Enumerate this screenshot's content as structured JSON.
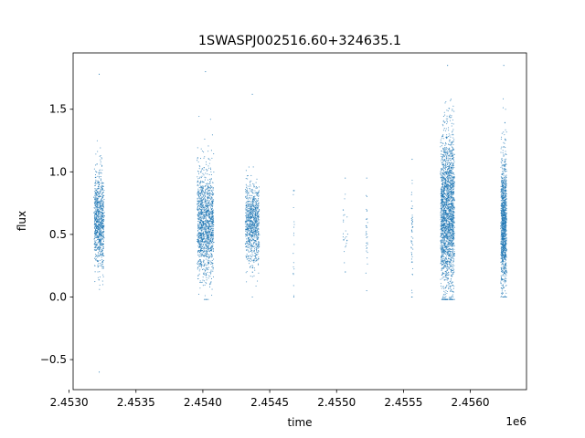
{
  "chart_data": {
    "type": "scatter",
    "title": "1SWASPJ002516.60+324635.1",
    "xlabel": "time",
    "ylabel": "flux",
    "x_offset_label": "1e6",
    "xlim": [
      2.45303,
      2.45642
    ],
    "ylim": [
      -0.74,
      1.95
    ],
    "x_ticks": [
      {
        "value": 2.453,
        "label": "2.4530"
      },
      {
        "value": 2.4535,
        "label": "2.4535"
      },
      {
        "value": 2.454,
        "label": "2.4540"
      },
      {
        "value": 2.4545,
        "label": "2.4545"
      },
      {
        "value": 2.455,
        "label": "2.4550"
      },
      {
        "value": 2.4555,
        "label": "2.4555"
      },
      {
        "value": 2.456,
        "label": "2.4560"
      }
    ],
    "y_ticks": [
      {
        "value": -0.5,
        "label": "−0.5"
      },
      {
        "value": 0.0,
        "label": "0.0"
      },
      {
        "value": 0.5,
        "label": "0.5"
      },
      {
        "value": 1.0,
        "label": "1.0"
      },
      {
        "value": 1.5,
        "label": "1.5"
      }
    ],
    "grid": false,
    "marker_color": "#1f77b4",
    "clusters": [
      {
        "x_start": 2.45319,
        "x_end": 2.45326,
        "y_center": 0.62,
        "y_spread": 0.18,
        "y_min": -0.6,
        "y_max": 1.78,
        "n": 900
      },
      {
        "x_start": 2.45396,
        "x_end": 2.45408,
        "y_center": 0.58,
        "y_spread": 0.22,
        "y_min": -0.02,
        "y_max": 1.8,
        "n": 1400
      },
      {
        "x_start": 2.45432,
        "x_end": 2.45442,
        "y_center": 0.58,
        "y_spread": 0.16,
        "y_min": 0.0,
        "y_max": 1.62,
        "n": 900
      },
      {
        "x_start": 2.45468,
        "x_end": 2.45468,
        "y_center": 0.45,
        "y_spread": 0.22,
        "y_min": 0.0,
        "y_max": 0.85,
        "n": 18
      },
      {
        "x_start": 2.45505,
        "x_end": 2.45508,
        "y_center": 0.55,
        "y_spread": 0.12,
        "y_min": 0.2,
        "y_max": 0.95,
        "n": 25
      },
      {
        "x_start": 2.45522,
        "x_end": 2.45523,
        "y_center": 0.55,
        "y_spread": 0.15,
        "y_min": 0.05,
        "y_max": 0.95,
        "n": 30
      },
      {
        "x_start": 2.45556,
        "x_end": 2.45557,
        "y_center": 0.5,
        "y_spread": 0.2,
        "y_min": 0.0,
        "y_max": 1.1,
        "n": 50
      },
      {
        "x_start": 2.45578,
        "x_end": 2.45588,
        "y_center": 0.68,
        "y_spread": 0.32,
        "y_min": -0.02,
        "y_max": 1.85,
        "n": 2200
      },
      {
        "x_start": 2.45623,
        "x_end": 2.45627,
        "y_center": 0.6,
        "y_spread": 0.26,
        "y_min": 0.0,
        "y_max": 1.85,
        "n": 1200
      }
    ]
  }
}
